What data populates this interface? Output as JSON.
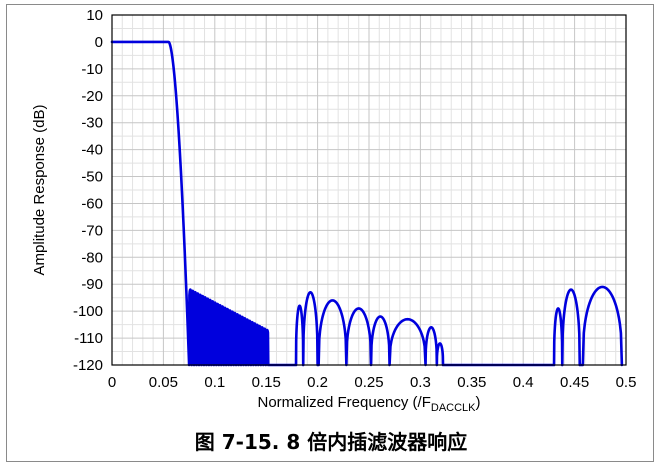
{
  "chart_data": {
    "type": "line",
    "xlabel_main": "Normalized Frequency (/F",
    "xlabel_sub": "DACCLK",
    "xlabel_end": ")",
    "ylabel": "Amplitude Response (dB)",
    "xlim": [
      0,
      0.5
    ],
    "ylim": [
      -120,
      10
    ],
    "xticks": [
      "0",
      "0.05",
      "0.1",
      "0.15",
      "0.2",
      "0.25",
      "0.3",
      "0.35",
      "0.4",
      "0.45",
      "0.5"
    ],
    "yticks": [
      "10",
      "0",
      "-10",
      "-20",
      "-30",
      "-40",
      "-50",
      "-60",
      "-70",
      "-80",
      "-90",
      "-100",
      "-110",
      "-120"
    ],
    "grid": true,
    "line_color": "#0000dd",
    "passband": {
      "x_start": 0,
      "x_end": 0.055,
      "value_db": 0
    },
    "transition": {
      "x_start": 0.055,
      "x_end": 0.075,
      "y_end": -120
    },
    "ripple_band_1": {
      "x_start": 0.075,
      "x_end": 0.152,
      "peak_start_db": -92,
      "peak_end_db": -107,
      "lobes": 32
    },
    "stopband_lobes": [
      {
        "x_start": 0.179,
        "x_end": 0.186,
        "peak_db": -98
      },
      {
        "x_start": 0.186,
        "x_end": 0.2,
        "peak_db": -93
      },
      {
        "x_start": 0.201,
        "x_end": 0.228,
        "peak_db": -96
      },
      {
        "x_start": 0.228,
        "x_end": 0.252,
        "peak_db": -99
      },
      {
        "x_start": 0.252,
        "x_end": 0.27,
        "peak_db": -102
      },
      {
        "x_start": 0.27,
        "x_end": 0.305,
        "peak_db": -103
      },
      {
        "x_start": 0.305,
        "x_end": 0.316,
        "peak_db": -106
      },
      {
        "x_start": 0.316,
        "x_end": 0.322,
        "peak_db": -112
      },
      {
        "x_start": 0.43,
        "x_end": 0.438,
        "peak_db": -99
      },
      {
        "x_start": 0.438,
        "x_end": 0.455,
        "peak_db": -92
      },
      {
        "x_start": 0.458,
        "x_end": 0.496,
        "peak_db": -91
      }
    ]
  },
  "caption": "图 7-15. 8 倍内插滤波器响应"
}
